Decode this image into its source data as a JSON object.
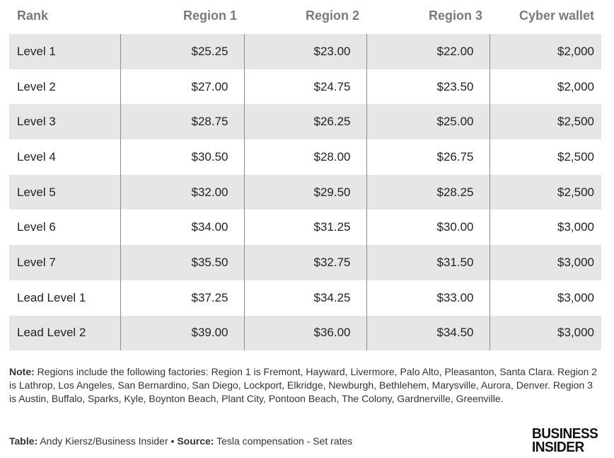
{
  "table": {
    "header": [
      "Rank",
      "Region 1",
      "Region 2",
      "Region 3",
      "Cyber wallet"
    ],
    "rows": [
      [
        "Level 1",
        "$25.25",
        "$23.00",
        "$22.00",
        "$2,000"
      ],
      [
        "Level 2",
        "$27.00",
        "$24.75",
        "$23.50",
        "$2,000"
      ],
      [
        "Level 3",
        "$28.75",
        "$26.25",
        "$25.00",
        "$2,500"
      ],
      [
        "Level 4",
        "$30.50",
        "$28.00",
        "$26.75",
        "$2,500"
      ],
      [
        "Level 5",
        "$32.00",
        "$29.50",
        "$28.25",
        "$2,500"
      ],
      [
        "Level 6",
        "$34.00",
        "$31.25",
        "$30.00",
        "$3,000"
      ],
      [
        "Level 7",
        "$35.50",
        "$32.75",
        "$31.50",
        "$3,000"
      ],
      [
        "Lead Level 1",
        "$37.25",
        "$34.25",
        "$33.00",
        "$3,000"
      ],
      [
        "Lead Level 2",
        "$39.00",
        "$36.00",
        "$34.50",
        "$3,000"
      ]
    ]
  },
  "note": {
    "label": "Note:",
    "text": "Regions include the following factories: Region 1 is Fremont, Hayward, Livermore, Palo Alto, Pleasanton, Santa Clara. Region 2 is Lathrop, Los Angeles, San Bernardino, San Diego, Lockport, Elkridge, Newburgh, Bethlehem, Marysville, Aurora, Denver. Region 3 is Austin, Buffalo, Sparks, Kyle, Boynton Beach, Plant City, Pontoon Beach, The Colony, Gardnerville, Greenville."
  },
  "footer": {
    "table_label": "Table:",
    "table_text": "Andy Kiersz/Business Insider",
    "separator": "•",
    "source_label": "Source:",
    "source_text": "Tesla compensation - Set rates"
  },
  "logo": [
    "BUSINESS",
    "INSIDER"
  ]
}
